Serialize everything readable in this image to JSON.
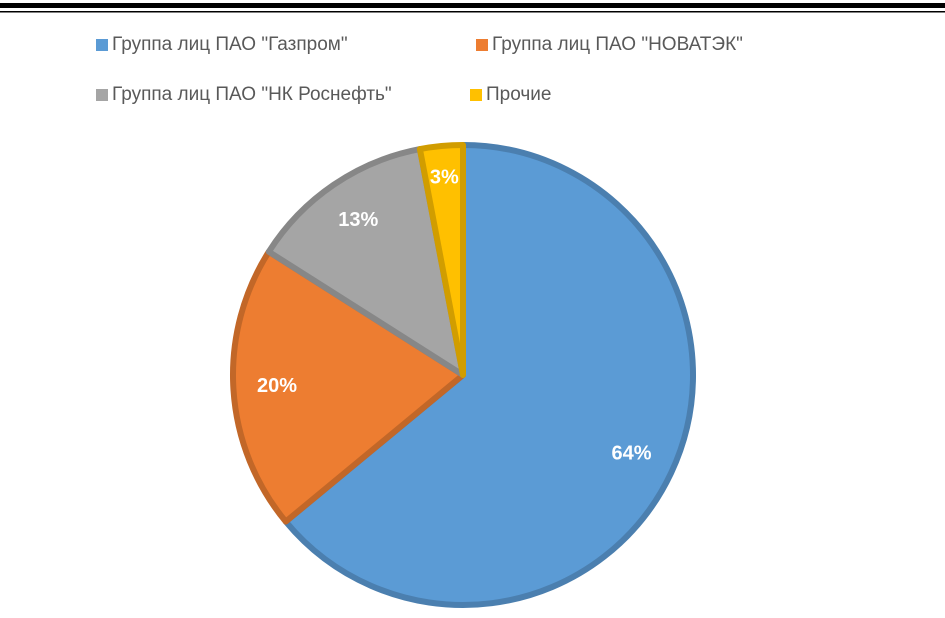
{
  "chart_data": {
    "type": "pie",
    "categories": [
      "Группа лиц ПАО \"Газпром\"",
      "Группа лиц ПАО \"НОВАТЭК\"",
      "Группа лиц ПАО \"НК Роснефть\"",
      "Прочие"
    ],
    "values": [
      64,
      20,
      13,
      3
    ],
    "value_labels": [
      "64%",
      "20%",
      "13%",
      "3%"
    ],
    "colors": [
      "#5b9bd5",
      "#ed7d31",
      "#a5a5a5",
      "#ffc000"
    ],
    "legend": "top"
  }
}
